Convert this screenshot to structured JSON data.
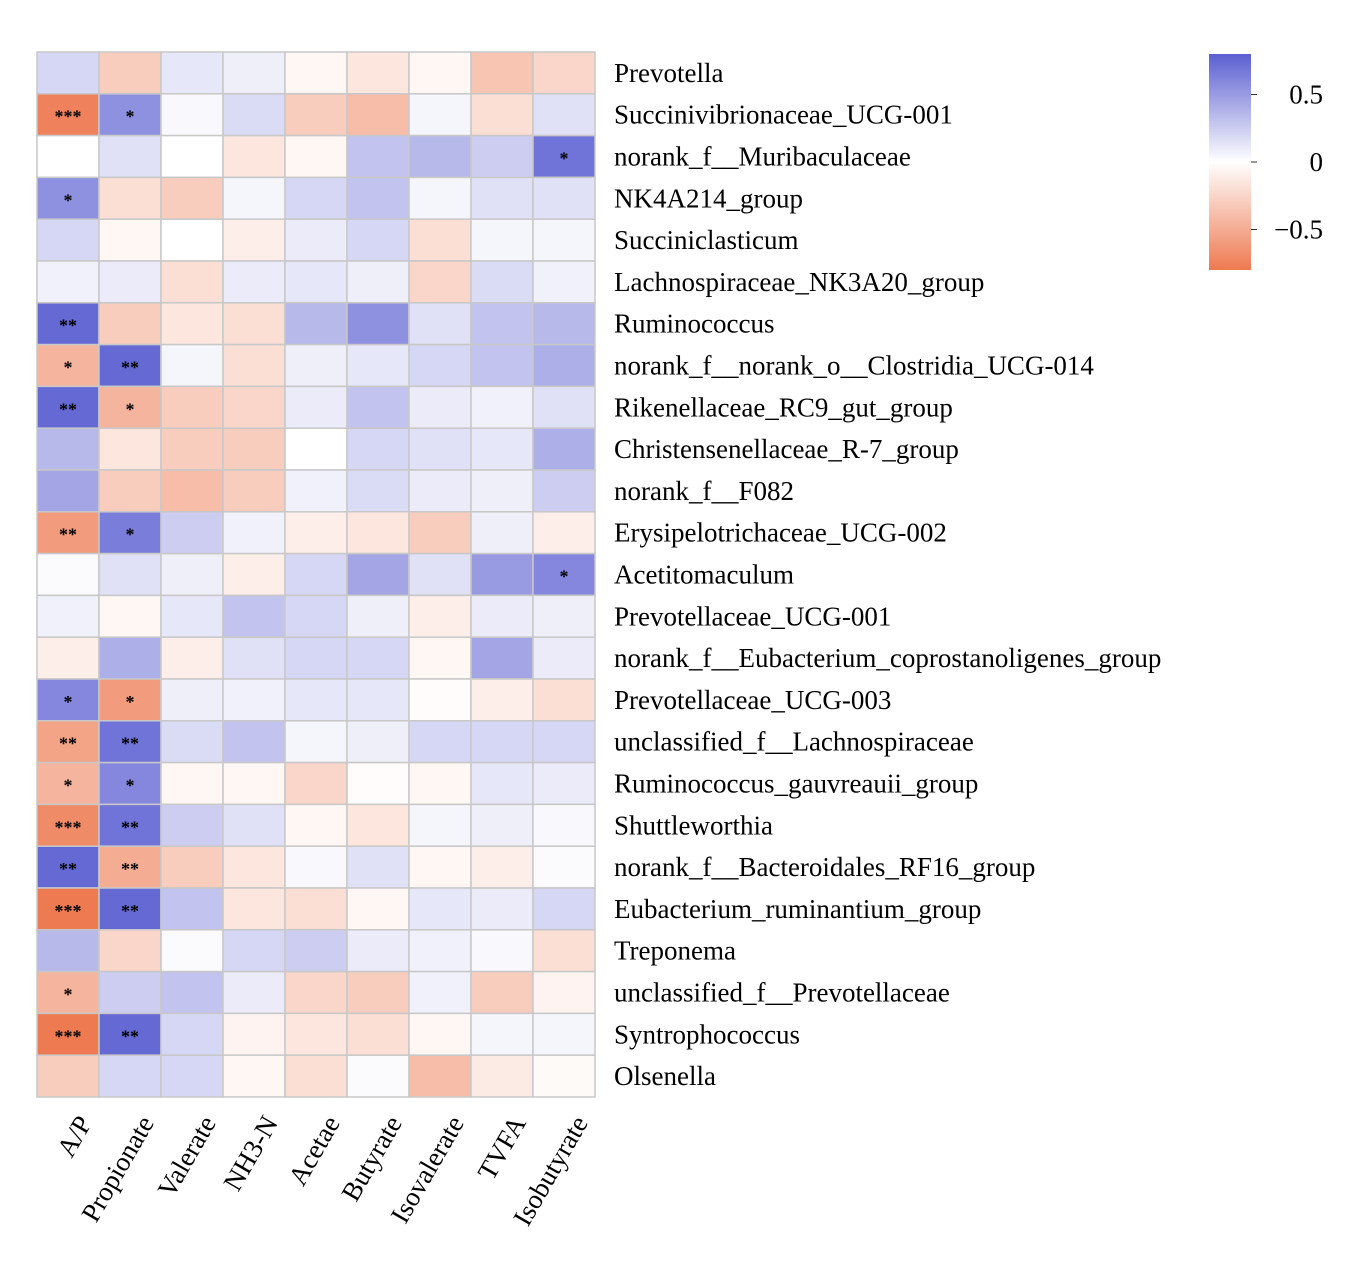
{
  "chart_data": {
    "type": "heatmap",
    "title": "",
    "columns": [
      "A/P",
      "Propionate",
      "Valerate",
      "NH3-N",
      "Acetae",
      "Butyrate",
      "Isovalerate",
      "TVFA",
      "Isobutyrate"
    ],
    "rows": [
      "Prevotella",
      "Succinivibrionaceae_UCG-001",
      "norank_f__Muribaculaceae",
      "NK4A214_group",
      "Succiniclasticum",
      "Lachnospiraceae_NK3A20_group",
      "Ruminococcus",
      "norank_f__norank_o__Clostridia_UCG-014",
      "Rikenellaceae_RC9_gut_group",
      "Christensenellaceae_R-7_group",
      "norank_f__F082",
      "Erysipelotrichaceae_UCG-002",
      "Acetitomaculum",
      "Prevotellaceae_UCG-001",
      "norank_f__Eubacterium_coprostanoligenes_group",
      "Prevotellaceae_UCG-003",
      "unclassified_f__Lachnospiraceae",
      "Ruminococcus_gauvreauii_group",
      "Shuttleworthia",
      "norank_f__Bacteroidales_RF16_group",
      "Eubacterium_ruminantium_group",
      "Treponema",
      "unclassified_f__Prevotellaceae",
      "Syntrophococcus",
      "Olsenella"
    ],
    "values": [
      [
        0.2,
        -0.3,
        0.12,
        0.08,
        -0.05,
        -0.15,
        -0.05,
        -0.35,
        -0.25
      ],
      [
        -0.75,
        0.55,
        0.03,
        0.18,
        -0.3,
        -0.4,
        0.05,
        -0.2,
        0.15
      ],
      [
        0.0,
        0.15,
        0.0,
        -0.15,
        -0.05,
        0.3,
        0.35,
        0.25,
        0.7
      ],
      [
        0.55,
        -0.2,
        -0.3,
        0.05,
        0.2,
        0.3,
        0.05,
        0.15,
        0.15
      ],
      [
        0.2,
        -0.05,
        0.0,
        -0.1,
        0.1,
        0.2,
        -0.2,
        0.05,
        0.05
      ],
      [
        0.07,
        0.1,
        -0.2,
        0.1,
        0.12,
        0.08,
        -0.25,
        0.18,
        0.07
      ],
      [
        0.75,
        -0.3,
        -0.15,
        -0.2,
        0.35,
        0.55,
        0.15,
        0.3,
        0.35
      ],
      [
        -0.45,
        0.75,
        0.05,
        -0.2,
        0.08,
        0.12,
        0.2,
        0.3,
        0.4
      ],
      [
        0.75,
        -0.45,
        -0.3,
        -0.25,
        0.1,
        0.3,
        0.1,
        0.07,
        0.15
      ],
      [
        0.35,
        -0.15,
        -0.3,
        -0.3,
        0.0,
        0.2,
        0.15,
        0.12,
        0.4
      ],
      [
        0.45,
        -0.3,
        -0.4,
        -0.3,
        0.07,
        0.18,
        0.1,
        0.08,
        0.25
      ],
      [
        -0.6,
        0.65,
        0.25,
        0.07,
        -0.1,
        -0.15,
        -0.3,
        0.08,
        -0.1
      ],
      [
        0.02,
        0.15,
        0.08,
        -0.1,
        0.2,
        0.45,
        0.15,
        0.5,
        0.6
      ],
      [
        0.07,
        -0.05,
        0.12,
        0.3,
        0.2,
        0.08,
        -0.1,
        0.1,
        0.08
      ],
      [
        -0.1,
        0.4,
        -0.1,
        0.15,
        0.2,
        0.2,
        -0.05,
        0.45,
        0.1
      ],
      [
        0.6,
        -0.6,
        0.08,
        0.07,
        0.12,
        0.12,
        -0.02,
        -0.1,
        -0.2
      ],
      [
        -0.55,
        0.7,
        0.18,
        0.3,
        0.05,
        0.08,
        0.2,
        0.2,
        0.2
      ],
      [
        -0.45,
        0.6,
        -0.05,
        -0.05,
        -0.25,
        -0.02,
        -0.05,
        0.12,
        0.1
      ],
      [
        -0.7,
        0.7,
        0.25,
        0.15,
        -0.05,
        -0.15,
        0.05,
        0.08,
        0.03
      ],
      [
        0.75,
        -0.5,
        -0.3,
        -0.15,
        0.03,
        0.15,
        -0.05,
        -0.1,
        0.02
      ],
      [
        -0.8,
        0.75,
        0.3,
        -0.15,
        -0.2,
        -0.05,
        0.12,
        0.1,
        0.2
      ],
      [
        0.35,
        -0.25,
        0.02,
        0.2,
        0.25,
        0.1,
        0.07,
        0.03,
        -0.2
      ],
      [
        -0.45,
        0.25,
        0.3,
        0.1,
        -0.25,
        -0.3,
        0.07,
        -0.3,
        -0.07
      ],
      [
        -0.8,
        0.75,
        0.2,
        -0.07,
        -0.15,
        -0.2,
        -0.05,
        0.05,
        0.05
      ],
      [
        -0.3,
        0.2,
        0.2,
        -0.05,
        -0.2,
        0.02,
        -0.4,
        -0.12,
        -0.03
      ]
    ],
    "significance": [
      [
        "",
        "",
        "",
        "",
        "",
        "",
        "",
        "",
        ""
      ],
      [
        "***",
        "*",
        "",
        "",
        "",
        "",
        "",
        "",
        ""
      ],
      [
        "",
        "",
        "",
        "",
        "",
        "",
        "",
        "",
        "*"
      ],
      [
        "*",
        "",
        "",
        "",
        "",
        "",
        "",
        "",
        ""
      ],
      [
        "",
        "",
        "",
        "",
        "",
        "",
        "",
        "",
        ""
      ],
      [
        "",
        "",
        "",
        "",
        "",
        "",
        "",
        "",
        ""
      ],
      [
        "**",
        "",
        "",
        "",
        "",
        "",
        "",
        "",
        ""
      ],
      [
        "*",
        "**",
        "",
        "",
        "",
        "",
        "",
        "",
        ""
      ],
      [
        "**",
        "*",
        "",
        "",
        "",
        "",
        "",
        "",
        ""
      ],
      [
        "",
        "",
        "",
        "",
        "",
        "",
        "",
        "",
        ""
      ],
      [
        "",
        "",
        "",
        "",
        "",
        "",
        "",
        "",
        ""
      ],
      [
        "**",
        "*",
        "",
        "",
        "",
        "",
        "",
        "",
        ""
      ],
      [
        "",
        "",
        "",
        "",
        "",
        "",
        "",
        "",
        "*"
      ],
      [
        "",
        "",
        "",
        "",
        "",
        "",
        "",
        "",
        ""
      ],
      [
        "",
        "",
        "",
        "",
        "",
        "",
        "",
        "",
        ""
      ],
      [
        "*",
        "*",
        "",
        "",
        "",
        "",
        "",
        "",
        ""
      ],
      [
        "**",
        "**",
        "",
        "",
        "",
        "",
        "",
        "",
        ""
      ],
      [
        "*",
        "*",
        "",
        "",
        "",
        "",
        "",
        "",
        ""
      ],
      [
        "***",
        "**",
        "",
        "",
        "",
        "",
        "",
        "",
        ""
      ],
      [
        "**",
        "**",
        "",
        "",
        "",
        "",
        "",
        "",
        ""
      ],
      [
        "***",
        "**",
        "",
        "",
        "",
        "",
        "",
        "",
        ""
      ],
      [
        "",
        "",
        "",
        "",
        "",
        "",
        "",
        "",
        ""
      ],
      [
        "*",
        "",
        "",
        "",
        "",
        "",
        "",
        "",
        ""
      ],
      [
        "***",
        "**",
        "",
        "",
        "",
        "",
        "",
        "",
        ""
      ],
      [
        "",
        "",
        "",
        "",
        "",
        "",
        "",
        "",
        ""
      ]
    ],
    "colorbar": {
      "min": -0.8,
      "max": 0.8,
      "ticks": [
        0.5,
        0,
        -0.5
      ],
      "tick_labels": [
        "0.5",
        "0",
        "−0.5"
      ],
      "low_color": "#ee7a51",
      "mid_color": "#ffffff",
      "high_color": "#5b5fd1"
    },
    "grid_color": "#c8c8c8"
  }
}
